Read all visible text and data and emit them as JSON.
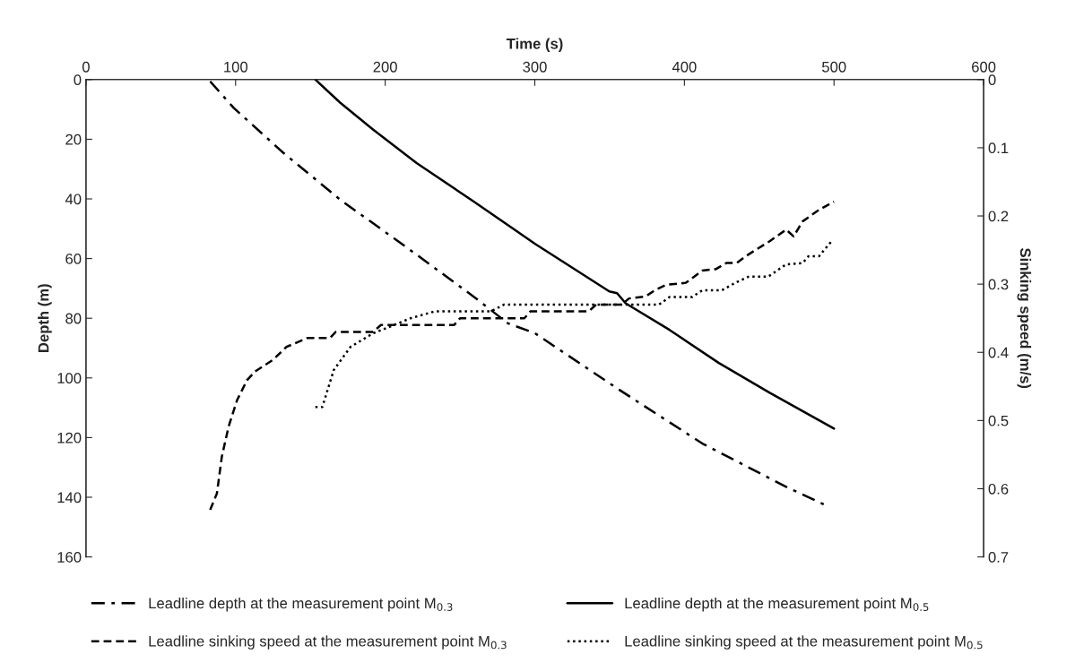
{
  "chart_data": {
    "type": "line",
    "xlabel": "Time (s)",
    "ylabel": "Depth (m)",
    "y2label": "Sinking speed (m/s)",
    "xlim": [
      0,
      600
    ],
    "xticks": [
      0,
      100,
      200,
      300,
      400,
      500,
      600
    ],
    "ylim": [
      160,
      0
    ],
    "yticks": [
      0,
      20,
      40,
      60,
      80,
      100,
      120,
      140,
      160
    ],
    "y2lim": [
      0.7,
      0
    ],
    "y2ticks": [
      0,
      0.1,
      0.2,
      0.3,
      0.4,
      0.5,
      0.6,
      0.7
    ],
    "grid": false,
    "legend": "bottom",
    "series": [
      {
        "name": "Leadline depth at the measurement point M$_{0.3}$",
        "color": "#000000",
        "line_style": "dashdot",
        "x": [
          83,
          98.7,
          132,
          170,
          215,
          259,
          282,
          300,
          356.5,
          412,
          468,
          494
        ],
        "values": [
          0.6,
          9.5,
          24.6,
          40.3,
          56.5,
          72.7,
          81.7,
          85,
          104,
          122,
          136.5,
          142.6
        ]
      },
      {
        "name": "Leadline depth at the measurement point M$_{0.5}$",
        "color": "#000000",
        "line_style": "solid",
        "x": [
          153.3,
          170,
          192,
          221,
          259,
          300,
          349.8,
          355,
          360.7,
          390,
          423,
          457,
          500
        ],
        "values": [
          0,
          7.8,
          16.8,
          28,
          40.8,
          55,
          71,
          71.6,
          75,
          83.9,
          95,
          105,
          117
        ]
      },
      {
        "name": "Leadline sinking speed at the measurement point M$_{0.3}$",
        "color": "#000000",
        "line_style": "dashed",
        "axis": "y2",
        "x": [
          83,
          87.5,
          90.8,
          95.3,
          101,
          107.6,
          113,
          125,
          134,
          148,
          163,
          167,
          192,
          197,
          246,
          250,
          293,
          297,
          336,
          341,
          358,
          363,
          374,
          381,
          387.7,
          401,
          412,
          421,
          428,
          435,
          441,
          457,
          468,
          473,
          479,
          490,
          500
        ],
        "values": [
          0.631,
          0.607,
          0.553,
          0.509,
          0.47,
          0.441,
          0.428,
          0.411,
          0.392,
          0.379,
          0.379,
          0.37,
          0.37,
          0.36,
          0.36,
          0.35,
          0.35,
          0.34,
          0.34,
          0.33,
          0.33,
          0.321,
          0.318,
          0.308,
          0.301,
          0.298,
          0.28,
          0.278,
          0.269,
          0.269,
          0.259,
          0.237,
          0.22,
          0.23,
          0.208,
          0.191,
          0.179
        ]
      },
      {
        "name": "Leadline sinking speed at the measurement point M$_{0.5}$",
        "color": "#000000",
        "line_style": "dotted",
        "axis": "y2",
        "x": [
          153.3,
          158,
          165.6,
          176.8,
          192,
          203.6,
          217,
          233,
          270.5,
          279.5,
          324,
          383,
          390,
          405,
          412,
          425,
          434,
          443,
          456,
          468,
          479,
          483,
          490,
          498
        ],
        "values": [
          0.48,
          0.48,
          0.426,
          0.392,
          0.372,
          0.362,
          0.35,
          0.34,
          0.34,
          0.33,
          0.33,
          0.33,
          0.319,
          0.319,
          0.309,
          0.309,
          0.298,
          0.289,
          0.289,
          0.271,
          0.269,
          0.259,
          0.259,
          0.238
        ]
      }
    ]
  }
}
